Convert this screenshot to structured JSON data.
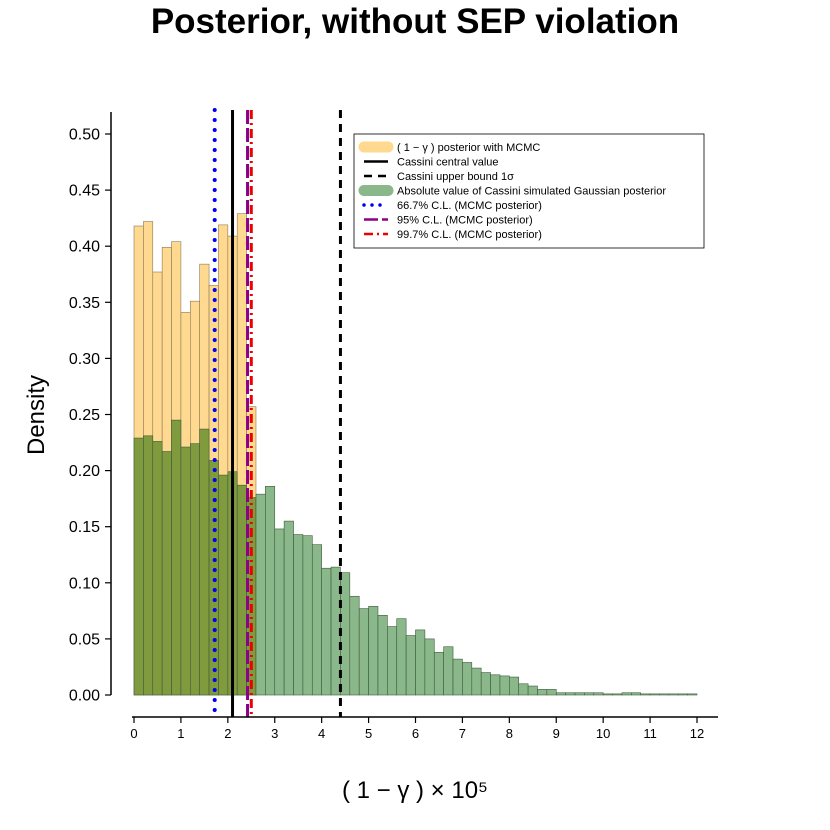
{
  "chart_data": {
    "type": "bar",
    "title": "Posterior, without SEP violation",
    "xlabel": "( 1 − γ ) × 10⁵",
    "ylabel": "Density",
    "xlim": [
      0,
      12
    ],
    "ylim": [
      0,
      0.5
    ],
    "x_ticks": [
      "0",
      "1",
      "2",
      "3",
      "4",
      "5",
      "6",
      "7",
      "8",
      "9",
      "10",
      "11",
      "12"
    ],
    "y_ticks": [
      "0.00",
      "0.05",
      "0.10",
      "0.15",
      "0.20",
      "0.25",
      "0.30",
      "0.35",
      "0.40",
      "0.45",
      "0.50"
    ],
    "bin_width": 0.2,
    "grid": false,
    "legend_position": "top-right",
    "colors": {
      "mcmc_fill": "#ffd98f",
      "gaussian_fill": "#8ab88a",
      "overlap_fill": "#809a3e",
      "cassini_central": "#000000",
      "cassini_upper": "#000000",
      "cl_667": "#0000ee",
      "cl_95": "#8b008b",
      "cl_997": "#ee0000"
    },
    "series": [
      {
        "name": "( 1 − γ ) posterior with MCMC",
        "bin_starts": [
          0.0,
          0.2,
          0.4,
          0.6,
          0.8,
          1.0,
          1.2,
          1.4,
          1.6,
          1.8,
          2.0,
          2.2,
          2.4
        ],
        "values": [
          0.418,
          0.422,
          0.377,
          0.399,
          0.404,
          0.341,
          0.351,
          0.384,
          0.365,
          0.419,
          0.409,
          0.429,
          0.257
        ]
      },
      {
        "name": "Absolute value of Cassini simulated Gaussian posterior",
        "bin_starts": [
          0.0,
          0.2,
          0.4,
          0.6,
          0.8,
          1.0,
          1.2,
          1.4,
          1.6,
          1.8,
          2.0,
          2.2,
          2.4,
          2.6,
          2.8,
          3.0,
          3.2,
          3.4,
          3.6,
          3.8,
          4.0,
          4.2,
          4.4,
          4.6,
          4.8,
          5.0,
          5.2,
          5.4,
          5.6,
          5.8,
          6.0,
          6.2,
          6.4,
          6.6,
          6.8,
          7.0,
          7.2,
          7.4,
          7.6,
          7.8,
          8.0,
          8.2,
          8.4,
          8.6,
          8.8,
          9.0,
          9.2,
          9.4,
          9.6,
          9.8,
          10.0,
          10.2,
          10.4,
          10.6,
          10.8,
          11.0,
          11.2,
          11.4,
          11.6,
          11.8
        ],
        "values": [
          0.229,
          0.231,
          0.226,
          0.217,
          0.245,
          0.221,
          0.224,
          0.237,
          0.209,
          0.196,
          0.199,
          0.187,
          0.176,
          0.179,
          0.186,
          0.148,
          0.155,
          0.143,
          0.142,
          0.134,
          0.113,
          0.114,
          0.109,
          0.088,
          0.077,
          0.079,
          0.071,
          0.061,
          0.068,
          0.053,
          0.058,
          0.05,
          0.038,
          0.043,
          0.032,
          0.029,
          0.024,
          0.02,
          0.018,
          0.017,
          0.016,
          0.01,
          0.008,
          0.005,
          0.005,
          0.002,
          0.002,
          0.002,
          0.002,
          0.002,
          0.001,
          0.001,
          0.002,
          0.002,
          0.001,
          0.001,
          0.001,
          0.001,
          0.001,
          0.001
        ]
      }
    ],
    "vlines": [
      {
        "name": "Cassini central value",
        "x": 2.1,
        "style": "solid"
      },
      {
        "name": "Cassini upper bound  1σ",
        "x": 4.4,
        "style": "dashed"
      },
      {
        "name": "66.7% C.L. (MCMC posterior)",
        "x": 1.72,
        "style": "dotted"
      },
      {
        "name": "95% C.L. (MCMC posterior)",
        "x": 2.42,
        "style": "longdash"
      },
      {
        "name": "99.7% C.L. (MCMC posterior)",
        "x": 2.5,
        "style": "dotdash"
      }
    ]
  }
}
